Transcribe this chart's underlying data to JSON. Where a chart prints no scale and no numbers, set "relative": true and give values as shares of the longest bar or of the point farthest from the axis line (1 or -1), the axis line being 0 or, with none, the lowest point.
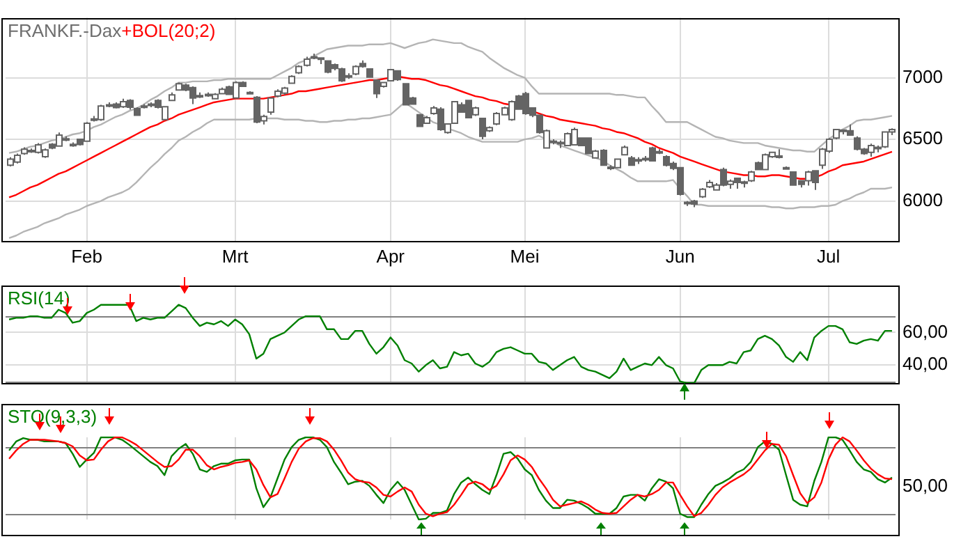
{
  "chart_data": [
    {
      "type": "candlestick",
      "title": "FRANKF.-Dax",
      "categories": [
        null,
        null,
        null,
        null,
        null,
        null,
        null,
        null,
        null,
        null,
        null,
        "Feb",
        null,
        null,
        null,
        null,
        null,
        null,
        null,
        null,
        null,
        null,
        null,
        null,
        null,
        null,
        null,
        null,
        null,
        null,
        null,
        null,
        "Mrt",
        null,
        null,
        null,
        null,
        null,
        null,
        null,
        null,
        null,
        null,
        null,
        null,
        null,
        null,
        null,
        null,
        null,
        null,
        null,
        null,
        null,
        "Apr",
        null,
        null,
        null,
        null,
        null,
        null,
        null,
        null,
        null,
        null,
        null,
        null,
        null,
        null,
        null,
        null,
        null,
        null,
        "Mei",
        null,
        null,
        null,
        null,
        null,
        null,
        null,
        null,
        null,
        null,
        null,
        null,
        null,
        null,
        null,
        null,
        null,
        null,
        null,
        null,
        null,
        "Jun",
        null,
        null,
        null,
        null,
        null,
        null,
        null,
        null,
        null,
        null,
        null,
        null,
        null,
        null,
        null,
        null,
        null,
        null,
        null,
        null,
        "Jul",
        null,
        null,
        null,
        null,
        null,
        null,
        null,
        null,
        null
      ],
      "color": "#646464",
      "ohlc": [
        [
          6290,
          6355,
          6280,
          6340
        ],
        [
          6315,
          6385,
          6305,
          6370
        ],
        [
          6385,
          6435,
          6375,
          6420
        ],
        [
          6405,
          6425,
          6390,
          6410
        ],
        [
          6395,
          6470,
          6385,
          6455
        ],
        [
          6360,
          6425,
          6350,
          6415
        ],
        [
          6460,
          6470,
          6420,
          6430
        ],
        [
          6445,
          6555,
          6440,
          6535
        ],
        [
          6505,
          6525,
          6485,
          6500
        ],
        [
          6455,
          6475,
          6440,
          6460
        ],
        [
          6500,
          6505,
          6450,
          6458
        ],
        [
          6485,
          6640,
          6480,
          6630
        ],
        [
          6660,
          6690,
          6645,
          6665
        ],
        [
          6660,
          6780,
          6650,
          6770
        ],
        [
          6775,
          6800,
          6760,
          6780
        ],
        [
          6785,
          6800,
          6750,
          6758
        ],
        [
          6765,
          6830,
          6755,
          6805
        ],
        [
          6815,
          6825,
          6740,
          6760
        ],
        [
          6750,
          6760,
          6690,
          6695
        ],
        [
          6765,
          6785,
          6750,
          6770
        ],
        [
          6780,
          6800,
          6760,
          6785
        ],
        [
          6815,
          6825,
          6750,
          6760
        ],
        [
          6660,
          6770,
          6655,
          6765
        ],
        [
          6815,
          6880,
          6810,
          6860
        ],
        [
          6900,
          6960,
          6895,
          6950
        ],
        [
          6940,
          6950,
          6890,
          6900
        ],
        [
          6920,
          6930,
          6785,
          6835
        ],
        [
          6850,
          6880,
          6835,
          6855
        ],
        [
          6860,
          6880,
          6845,
          6865
        ],
        [
          6830,
          6875,
          6825,
          6865
        ],
        [
          6870,
          6920,
          6865,
          6905
        ],
        [
          6925,
          6935,
          6860,
          6865
        ],
        [
          6835,
          6970,
          6830,
          6960
        ],
        [
          6960,
          6970,
          6925,
          6930
        ],
        [
          6880,
          6890,
          6865,
          6875
        ],
        [
          6840,
          6850,
          6630,
          6640
        ],
        [
          6650,
          6700,
          6620,
          6685
        ],
        [
          6720,
          6840,
          6700,
          6835
        ],
        [
          6850,
          6905,
          6840,
          6890
        ],
        [
          6875,
          6925,
          6860,
          6915
        ],
        [
          6955,
          7020,
          6950,
          7010
        ],
        [
          7040,
          7100,
          7030,
          7090
        ],
        [
          7100,
          7170,
          7090,
          7150
        ],
        [
          7165,
          7195,
          7150,
          7170
        ],
        [
          7155,
          7165,
          7110,
          7160
        ],
        [
          7135,
          7140,
          7035,
          7045
        ],
        [
          7105,
          7115,
          7060,
          7075
        ],
        [
          7070,
          7080,
          6965,
          6975
        ],
        [
          7010,
          7035,
          6990,
          7015
        ],
        [
          7030,
          7100,
          7020,
          7090
        ],
        [
          7115,
          7140,
          7080,
          7090
        ],
        [
          7070,
          7075,
          7000,
          7005
        ],
        [
          6980,
          6985,
          6835,
          6870
        ],
        [
          6930,
          6965,
          6920,
          6960
        ],
        [
          6975,
          7070,
          6970,
          7065
        ],
        [
          7055,
          7060,
          6975,
          6985
        ],
        [
          6950,
          6955,
          6775,
          6780
        ],
        [
          6835,
          6845,
          6780,
          6785
        ],
        [
          6700,
          6705,
          6600,
          6605
        ],
        [
          6630,
          6690,
          6625,
          6675
        ],
        [
          6710,
          6770,
          6700,
          6755
        ],
        [
          6745,
          6760,
          6570,
          6580
        ],
        [
          6555,
          6630,
          6545,
          6625
        ],
        [
          6630,
          6810,
          6625,
          6805
        ],
        [
          6780,
          6800,
          6715,
          6720
        ],
        [
          6815,
          6820,
          6670,
          6675
        ],
        [
          6700,
          6765,
          6690,
          6755
        ],
        [
          6670,
          6675,
          6500,
          6525
        ],
        [
          6570,
          6605,
          6560,
          6595
        ],
        [
          6625,
          6720,
          6615,
          6710
        ],
        [
          6700,
          6765,
          6695,
          6755
        ],
        [
          6660,
          6815,
          6650,
          6805
        ],
        [
          6850,
          6860,
          6740,
          6745
        ],
        [
          6870,
          6885,
          6700,
          6710
        ],
        [
          6755,
          6760,
          6680,
          6695
        ],
        [
          6695,
          6700,
          6545,
          6555
        ],
        [
          6430,
          6580,
          6425,
          6570
        ],
        [
          6480,
          6500,
          6460,
          6485
        ],
        [
          6470,
          6490,
          6430,
          6475
        ],
        [
          6450,
          6555,
          6445,
          6545
        ],
        [
          6455,
          6595,
          6450,
          6580
        ],
        [
          6510,
          6515,
          6445,
          6450
        ],
        [
          6510,
          6515,
          6380,
          6385
        ],
        [
          6350,
          6415,
          6345,
          6405
        ],
        [
          6410,
          6420,
          6285,
          6290
        ],
        [
          6270,
          6290,
          6250,
          6275
        ],
        [
          6270,
          6345,
          6265,
          6340
        ],
        [
          6375,
          6450,
          6370,
          6435
        ],
        [
          6350,
          6365,
          6285,
          6290
        ],
        [
          6330,
          6355,
          6300,
          6335
        ],
        [
          6340,
          6365,
          6320,
          6345
        ],
        [
          6430,
          6440,
          6320,
          6325
        ],
        [
          6395,
          6420,
          6380,
          6400
        ],
        [
          6360,
          6370,
          6280,
          6290
        ],
        [
          6305,
          6320,
          6250,
          6265
        ],
        [
          6270,
          6275,
          6045,
          6055
        ],
        [
          5990,
          6000,
          5960,
          5985
        ],
        [
          6000,
          6010,
          5950,
          5975
        ],
        [
          6035,
          6105,
          6025,
          6095
        ],
        [
          6115,
          6170,
          6105,
          6150
        ],
        [
          6090,
          6145,
          6085,
          6130
        ],
        [
          6255,
          6270,
          6120,
          6130
        ],
        [
          6135,
          6175,
          6100,
          6160
        ],
        [
          6185,
          6190,
          6100,
          6150
        ],
        [
          6150,
          6165,
          6110,
          6155
        ],
        [
          6165,
          6245,
          6155,
          6235
        ],
        [
          6310,
          6320,
          6250,
          6255
        ],
        [
          6255,
          6385,
          6250,
          6375
        ],
        [
          6360,
          6400,
          6350,
          6395
        ],
        [
          6365,
          6420,
          6345,
          6360
        ],
        [
          6270,
          6280,
          6255,
          6265
        ],
        [
          6235,
          6240,
          6125,
          6130
        ],
        [
          6165,
          6170,
          6110,
          6135
        ],
        [
          6165,
          6245,
          6125,
          6235
        ],
        [
          6245,
          6250,
          6090,
          6150
        ],
        [
          6290,
          6430,
          6260,
          6420
        ],
        [
          6405,
          6510,
          6390,
          6500
        ],
        [
          6510,
          6585,
          6500,
          6580
        ],
        [
          6575,
          6580,
          6540,
          6570
        ],
        [
          6570,
          6620,
          6530,
          6535
        ],
        [
          6510,
          6525,
          6410,
          6420
        ],
        [
          6420,
          6430,
          6375,
          6385
        ],
        [
          6395,
          6465,
          6360,
          6450
        ],
        [
          6435,
          6450,
          6395,
          6430
        ],
        [
          6440,
          6565,
          6430,
          6560
        ],
        [
          6560,
          6590,
          6535,
          6580
        ]
      ],
      "series": [
        {
          "type": "line",
          "color": "#b4b4b4",
          "values": [
            6390,
            6400,
            6420,
            6440,
            6450,
            6470,
            6490,
            6500,
            6520,
            6540,
            6550,
            6570,
            6600,
            6620,
            6650,
            6680,
            6700,
            6730,
            6750,
            6780,
            6820,
            6850,
            6890,
            6920,
            6960,
            6960,
            6970,
            6970,
            6970,
            6980,
            6980,
            6990,
            6990,
            6990,
            6990,
            6990,
            6990,
            6990,
            7020,
            7050,
            7080,
            7120,
            7140,
            7170,
            7200,
            7230,
            7240,
            7250,
            7260,
            7260,
            7260,
            7270,
            7270,
            7270,
            7280,
            7260,
            7240,
            7260,
            7280,
            7290,
            7310,
            7300,
            7290,
            7280,
            7280,
            7250,
            7230,
            7210,
            7160,
            7120,
            7080,
            7050,
            7020,
            7000,
            6930,
            6870,
            6870,
            6870,
            6870,
            6870,
            6870,
            6870,
            6870,
            6870,
            6870,
            6870,
            6860,
            6860,
            6850,
            6840,
            6840,
            6770,
            6710,
            6640,
            6640,
            6640,
            6640,
            6610,
            6580,
            6550,
            6520,
            6510,
            6490,
            6480,
            6470,
            6470,
            6470,
            6450,
            6440,
            6430,
            6420,
            6410,
            6410,
            6400,
            6400,
            6450,
            6500,
            6540,
            6580,
            6610,
            6650,
            6660,
            6660,
            6670,
            6680,
            6690
          ]
        },
        {
          "type": "line",
          "color": "#b4b4b4",
          "values": [
            5700,
            5720,
            5750,
            5770,
            5790,
            5820,
            5840,
            5860,
            5890,
            5910,
            5930,
            5960,
            5980,
            6000,
            6030,
            6050,
            6070,
            6100,
            6150,
            6210,
            6270,
            6320,
            6380,
            6430,
            6490,
            6520,
            6560,
            6590,
            6630,
            6660,
            6660,
            6660,
            6660,
            6660,
            6660,
            6670,
            6670,
            6670,
            6670,
            6660,
            6660,
            6660,
            6650,
            6650,
            6640,
            6640,
            6650,
            6650,
            6660,
            6660,
            6670,
            6670,
            6680,
            6690,
            6700,
            6750,
            6800,
            6760,
            6720,
            6680,
            6640,
            6620,
            6590,
            6570,
            6550,
            6520,
            6500,
            6480,
            6480,
            6480,
            6480,
            6480,
            6480,
            6500,
            6510,
            6530,
            6500,
            6480,
            6450,
            6430,
            6410,
            6390,
            6370,
            6350,
            6330,
            6290,
            6260,
            6230,
            6190,
            6160,
            6160,
            6160,
            6160,
            6160,
            6170,
            6100,
            6040,
            5970,
            5970,
            5960,
            5960,
            5960,
            5960,
            5960,
            5960,
            5960,
            5960,
            5960,
            5950,
            5950,
            5940,
            5940,
            5950,
            5950,
            5950,
            5960,
            5960,
            5970,
            6000,
            6020,
            6050,
            6070,
            6100,
            6100,
            6100,
            6110
          ]
        },
        {
          "type": "line",
          "name": "+BOL(20;2)",
          "color": "#ff0000",
          "values": [
            6030,
            6050,
            6080,
            6110,
            6130,
            6160,
            6190,
            6220,
            6240,
            6270,
            6300,
            6330,
            6360,
            6390,
            6420,
            6450,
            6480,
            6510,
            6540,
            6570,
            6600,
            6620,
            6650,
            6670,
            6700,
            6720,
            6740,
            6760,
            6780,
            6800,
            6810,
            6820,
            6830,
            6830,
            6830,
            6830,
            6830,
            6840,
            6850,
            6860,
            6870,
            6890,
            6890,
            6900,
            6910,
            6920,
            6930,
            6940,
            6950,
            6960,
            6970,
            6980,
            6980,
            6990,
            7000,
            7010,
            7000,
            6990,
            6990,
            6980,
            6960,
            6940,
            6930,
            6910,
            6890,
            6870,
            6850,
            6840,
            6820,
            6810,
            6790,
            6780,
            null,
            null,
            6730,
            6710,
            6690,
            6680,
            6660,
            6650,
            6640,
            6630,
            6620,
            6610,
            6590,
            6580,
            6560,
            6550,
            6530,
            6510,
            6480,
            6460,
            6430,
            6410,
            6390,
            6360,
            6340,
            6320,
            6300,
            6280,
            6260,
            6240,
            6230,
            6220,
            6210,
            6210,
            6200,
            6200,
            6210,
            6210,
            6200,
            6190,
            6180,
            6180,
            6190,
            6210,
            6240,
            6260,
            6290,
            6300,
            6310,
            6320,
            6340,
            6360,
            6380,
            6400
          ]
        }
      ],
      "ylim": [
        5665,
        7485
      ],
      "yticks": [
        6000,
        6500,
        7000
      ],
      "grid": true
    },
    {
      "type": "line",
      "title": "RSI(14)",
      "categories": [
        null,
        null,
        null,
        null,
        null,
        null,
        null,
        null,
        null,
        null,
        null,
        null,
        null,
        null,
        null,
        null,
        null,
        null,
        null,
        null,
        null,
        null,
        null,
        null,
        null,
        null,
        null,
        null,
        null,
        null,
        null,
        null,
        null,
        null,
        null,
        null,
        null,
        null,
        null,
        null,
        null,
        null,
        null,
        null,
        null,
        null,
        null,
        null,
        null,
        null,
        null,
        null,
        null,
        null,
        null,
        null,
        null,
        null,
        null,
        null,
        null,
        null,
        null,
        null,
        null,
        null,
        null,
        null,
        null,
        null,
        null,
        null,
        null,
        null,
        null,
        null,
        null,
        null,
        null,
        null,
        null,
        null,
        null,
        null,
        null,
        null,
        null,
        null,
        null,
        null,
        null,
        null,
        null,
        null,
        null,
        null,
        null,
        null,
        null,
        null,
        null,
        null,
        null,
        null,
        null,
        null,
        null,
        null,
        null,
        null,
        null,
        null,
        null,
        null,
        null,
        null,
        null,
        null,
        null,
        null,
        null,
        null,
        null,
        null,
        null,
        null
      ],
      "series": [
        {
          "color": "#008000",
          "values": [
            68,
            69,
            69,
            70,
            70,
            69,
            69,
            74,
            72,
            66,
            67,
            72,
            74,
            77,
            77,
            77,
            77,
            77,
            67,
            69,
            68,
            69,
            69,
            73,
            77,
            75,
            69,
            64,
            66,
            65,
            67,
            64,
            68,
            65,
            59,
            44,
            47,
            56,
            58,
            60,
            64,
            68,
            70,
            70,
            70,
            62,
            62,
            56,
            56,
            61,
            61,
            53,
            47,
            51,
            57,
            52,
            43,
            41,
            36,
            40,
            43,
            38,
            39,
            48,
            46,
            47,
            41,
            39,
            42,
            48,
            50,
            51,
            49,
            47,
            47,
            42,
            41,
            37,
            40,
            43,
            45,
            39,
            37,
            36,
            34,
            32,
            36,
            44,
            37,
            39,
            41,
            40,
            45,
            40,
            38,
            30,
            29,
            29,
            37,
            40,
            40,
            40,
            42,
            41,
            48,
            49,
            56,
            58,
            56,
            52,
            45,
            42,
            48,
            43,
            57,
            61,
            64,
            64,
            62,
            54,
            53,
            55,
            56,
            55,
            61,
            61
          ]
        }
      ],
      "ylim": [
        28,
        89
      ],
      "yticks": [
        {
          "value": 40,
          "label": "40,00"
        },
        {
          "value": 60,
          "label": "60,00"
        }
      ],
      "ref_lines": [
        {
          "axis": "y",
          "value": 70,
          "color": "#808080"
        },
        {
          "axis": "y",
          "value": 30,
          "color": "#808080"
        }
      ],
      "grid": true,
      "tick_labels": "y"
    },
    {
      "type": "line",
      "title": "STO(9,3,3)",
      "relative": true,
      "categories": [
        null,
        null,
        null,
        null,
        null,
        null,
        null,
        null,
        null,
        null,
        null,
        null,
        null,
        null,
        null,
        null,
        null,
        null,
        null,
        null,
        null,
        null,
        null,
        null,
        null,
        null,
        null,
        null,
        null,
        null,
        null,
        null,
        null,
        null,
        null,
        null,
        null,
        null,
        null,
        null,
        null,
        null,
        null,
        null,
        null,
        null,
        null,
        null,
        null,
        null,
        null,
        null,
        null,
        null,
        null,
        null,
        null,
        null,
        null,
        null,
        null,
        null,
        null,
        null,
        null,
        null,
        null,
        null,
        null,
        null,
        null,
        null,
        null,
        null,
        null,
        null,
        null,
        null,
        null,
        null,
        null,
        null,
        null,
        null,
        null,
        null,
        null,
        null,
        null,
        null,
        null,
        null,
        null,
        null,
        null,
        null,
        null,
        null,
        null,
        null,
        null,
        null,
        null,
        null,
        null,
        null,
        null,
        null,
        null,
        null,
        null,
        null,
        null,
        null,
        null,
        null,
        null,
        null,
        null,
        null,
        null,
        null,
        null,
        null,
        null,
        null
      ],
      "series": [
        {
          "color": "#ff0000",
          "values": [
            0.74,
            0.84,
            0.92,
            0.97,
            0.97,
            0.97,
            0.96,
            0.95,
            0.93,
            0.89,
            0.78,
            0.72,
            0.73,
            0.85,
            0.95,
            1,
            1,
            0.96,
            0.91,
            0.84,
            0.77,
            0.7,
            0.64,
            0.65,
            0.73,
            0.85,
            0.85,
            0.77,
            0.66,
            0.61,
            0.64,
            0.66,
            0.69,
            0.7,
            0.72,
            0.61,
            0.42,
            0.27,
            0.31,
            0.5,
            0.7,
            0.86,
            0.95,
            0.99,
            0.99,
            0.95,
            0.85,
            0.72,
            0.57,
            0.49,
            0.46,
            0.45,
            0.39,
            0.3,
            0.28,
            0.34,
            0.39,
            0.34,
            0.18,
            0.07,
            0.04,
            0.07,
            0.09,
            0.18,
            0.3,
            0.43,
            0.46,
            0.43,
            0.36,
            0.41,
            0.55,
            0.72,
            0.78,
            0.73,
            0.64,
            0.5,
            0.38,
            0.24,
            0.16,
            0.18,
            0.2,
            0.22,
            0.18,
            0.12,
            0.08,
            0.07,
            0.08,
            0.16,
            0.24,
            0.3,
            0.28,
            0.31,
            0.36,
            0.45,
            0.45,
            0.3,
            0.16,
            0.04,
            0.08,
            0.18,
            0.3,
            0.39,
            0.45,
            0.5,
            0.55,
            0.62,
            0.73,
            0.84,
            0.92,
            0.91,
            0.77,
            0.54,
            0.32,
            0.2,
            0.27,
            0.45,
            0.73,
            0.91,
            1,
            0.95,
            0.84,
            0.72,
            0.62,
            0.55,
            0.5,
            0.49
          ]
        },
        {
          "color": "#008000",
          "values": [
            0.84,
            0.95,
            0.99,
            0.97,
            0.97,
            0.95,
            0.95,
            0.95,
            0.93,
            0.8,
            0.64,
            0.73,
            0.81,
            1,
            1,
            1,
            0.97,
            0.91,
            0.84,
            0.77,
            0.7,
            0.65,
            0.54,
            0.77,
            0.86,
            0.92,
            0.8,
            0.61,
            0.58,
            0.65,
            0.68,
            0.68,
            0.72,
            0.73,
            0.73,
            0.38,
            0.15,
            0.27,
            0.5,
            0.73,
            0.88,
            0.97,
            1,
            1,
            0.97,
            0.88,
            0.7,
            0.57,
            0.43,
            0.46,
            0.47,
            0.41,
            0.3,
            0.2,
            0.36,
            0.46,
            0.36,
            0.18,
            0,
            0.01,
            0.08,
            0.08,
            0.11,
            0.31,
            0.45,
            0.51,
            0.43,
            0.36,
            0.31,
            0.54,
            0.8,
            0.82,
            0.74,
            0.61,
            0.54,
            0.36,
            0.23,
            0.14,
            0.14,
            0.24,
            0.23,
            0.19,
            0.14,
            0.07,
            0.07,
            0.07,
            0.14,
            0.28,
            0.3,
            0.3,
            0.23,
            0.38,
            0.49,
            0.46,
            0.38,
            0.07,
            0.03,
            0.03,
            0.18,
            0.31,
            0.41,
            0.45,
            0.5,
            0.57,
            0.61,
            0.7,
            0.88,
            0.95,
            0.92,
            0.85,
            0.54,
            0.24,
            0.18,
            0.16,
            0.47,
            0.7,
            1,
            1,
            0.97,
            0.84,
            0.7,
            0.61,
            0.58,
            0.49,
            0.45,
            0.51
          ]
        }
      ],
      "ref_lines": [
        {
          "axis": "y",
          "value": 0.88,
          "color": "#808080"
        },
        {
          "axis": "y",
          "value": 0.07,
          "color": "#808080"
        }
      ],
      "annotations": [
        "50,00"
      ],
      "grid": "x",
      "tick_labels": "y"
    }
  ]
}
